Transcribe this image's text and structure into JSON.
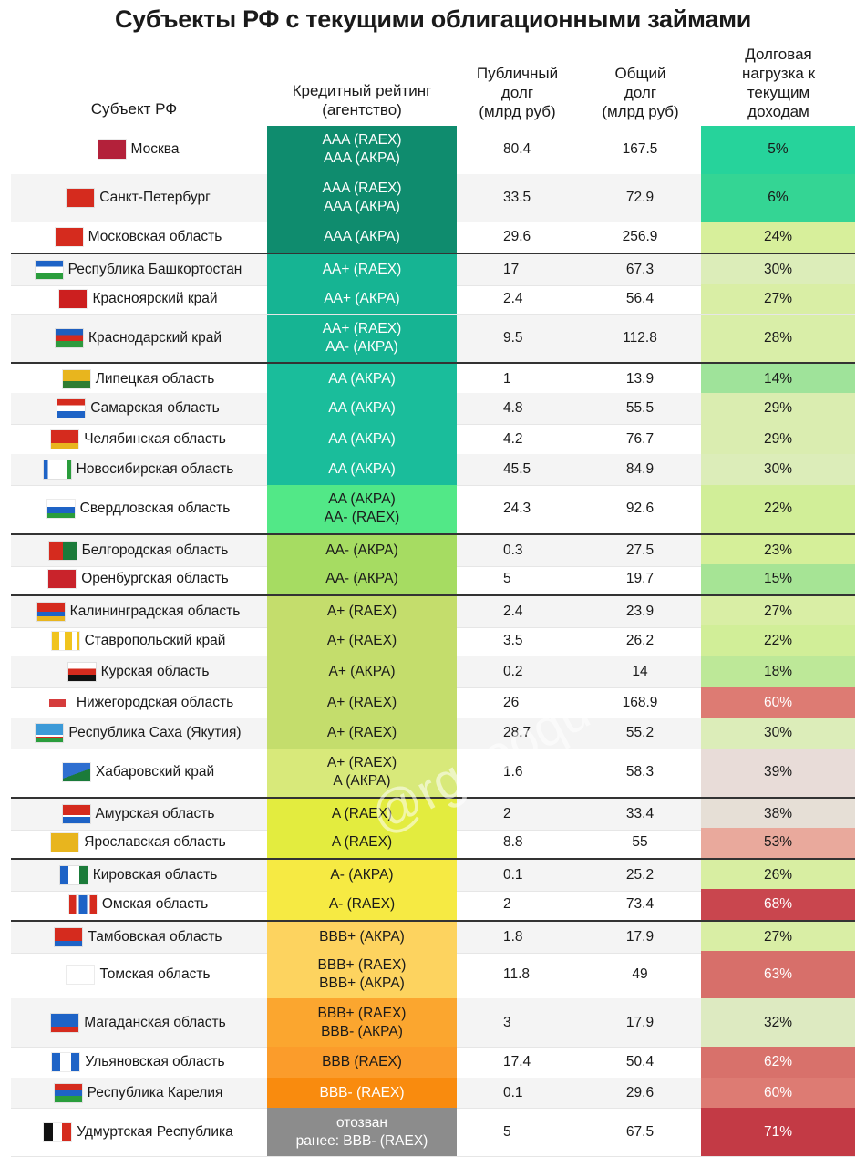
{
  "title": "Субъекты РФ с текущими облигационными займами",
  "watermark": "@rgoooque",
  "headers": {
    "region": "Субъект РФ",
    "rating": "Кредитный рейтинг\n(агентство)",
    "public_debt": "Публичный\nдолг\n(млрд руб)",
    "total_debt": "Общий\nдолг\n(млрд руб)",
    "load": "Долговая\nнагрузка к\nтекущим\nдоходам"
  },
  "chart_data": {
    "type": "table",
    "columns": [
      "Субъект РФ",
      "Кредитный рейтинг (агентство)",
      "Публичный долг (млрд руб)",
      "Общий долг (млрд руб)",
      "Долговая нагрузка к текущим доходам"
    ],
    "rows": [
      {
        "region": "Москва",
        "rating": "AAA (RAEX)\nAAA (АКРА)",
        "public_debt": "80.4",
        "total_debt": "167.5",
        "load": "5%",
        "rating_color": "#0f8c6e",
        "load_color": "#26d39b",
        "load_text": "#1a1a1a",
        "flag": "moscow-flag-icon",
        "tall": true,
        "sep": false
      },
      {
        "region": "Санкт-Петербург",
        "rating": "AAA (RAEX)\nAAA (АКРА)",
        "public_debt": "33.5",
        "total_debt": "72.9",
        "load": "6%",
        "rating_color": "#0f8c6e",
        "load_color": "#34d594",
        "load_text": "#1a1a1a",
        "flag": "spb-flag-icon",
        "tall": true,
        "sep": false
      },
      {
        "region": "Московская область",
        "rating": "AAA (АКРА)",
        "public_debt": "29.6",
        "total_debt": "256.9",
        "load": "24%",
        "rating_color": "#0f8c6e",
        "load_color": "#d7ef9b",
        "load_text": "#1a1a1a",
        "flag": "moscow-oblast-flag-icon",
        "tall": false,
        "sep": false
      },
      {
        "region": "Республика Башкортостан",
        "rating": "AA+ (RAEX)",
        "public_debt": "17",
        "total_debt": "67.3",
        "load": "30%",
        "rating_color": "#16b493",
        "load_color": "#dcedb9",
        "load_text": "#1a1a1a",
        "flag": "bashkortostan-flag-icon",
        "tall": false,
        "sep": true
      },
      {
        "region": "Красноярский край",
        "rating": "AA+ (АКРА)",
        "public_debt": "2.4",
        "total_debt": "56.4",
        "load": "27%",
        "rating_color": "#16b493",
        "load_color": "#d9eea5",
        "load_text": "#1a1a1a",
        "flag": "krasnoyarsk-flag-icon",
        "tall": false,
        "sep": false
      },
      {
        "region": "Краснодарский край",
        "rating": "AA+ (RAEX)\nAA- (АКРА)",
        "public_debt": "9.5",
        "total_debt": "112.8",
        "load": "28%",
        "rating_color": "#16b493",
        "load_color": "#d9eea8",
        "load_text": "#1a1a1a",
        "flag": "krasnodar-flag-icon",
        "tall": true,
        "sep": false
      },
      {
        "region": "Липецкая область",
        "rating": "AA (АКРА)",
        "public_debt": "1",
        "total_debt": "13.9",
        "load": "14%",
        "rating_color": "#1abd9b",
        "load_color": "#9fe39a",
        "load_text": "#1a1a1a",
        "flag": "lipetsk-flag-icon",
        "tall": false,
        "sep": true
      },
      {
        "region": "Самарская область",
        "rating": "AA (АКРА)",
        "public_debt": "4.8",
        "total_debt": "55.5",
        "load": "29%",
        "rating_color": "#1abd9b",
        "load_color": "#daedb0",
        "load_text": "#1a1a1a",
        "flag": "samara-flag-icon",
        "tall": false,
        "sep": false
      },
      {
        "region": "Челябинская область",
        "rating": "AA (АКРА)",
        "public_debt": "4.2",
        "total_debt": "76.7",
        "load": "29%",
        "rating_color": "#1abd9b",
        "load_color": "#daedb0",
        "load_text": "#1a1a1a",
        "flag": "chelyabinsk-flag-icon",
        "tall": false,
        "sep": false
      },
      {
        "region": "Новосибирская область",
        "rating": "AA (АКРА)",
        "public_debt": "45.5",
        "total_debt": "84.9",
        "load": "30%",
        "rating_color": "#1abd9b",
        "load_color": "#dcedb9",
        "load_text": "#1a1a1a",
        "flag": "novosibirsk-flag-icon",
        "tall": false,
        "sep": false
      },
      {
        "region": "Свердловская область",
        "rating": "AA (АКРА)\nAA- (RAEX)",
        "public_debt": "24.3",
        "total_debt": "92.6",
        "load": "22%",
        "rating_color": "#52e887",
        "load_color": "#d1ee98",
        "load_text": "#1a1a1a",
        "flag": "sverdlovsk-flag-icon",
        "tall": true,
        "sep": false
      },
      {
        "region": "Белгородская область",
        "rating": "AA- (АКРА)",
        "public_debt": "0.3",
        "total_debt": "27.5",
        "load": "23%",
        "rating_color": "#a6dc62",
        "load_color": "#d5ef99",
        "load_text": "#1a1a1a",
        "flag": "belgorod-flag-icon",
        "tall": false,
        "sep": true
      },
      {
        "region": "Оренбургская область",
        "rating": "AA- (АКРА)",
        "public_debt": "5",
        "total_debt": "19.7",
        "load": "15%",
        "rating_color": "#a6dc62",
        "load_color": "#a6e495",
        "load_text": "#1a1a1a",
        "flag": "orenburg-flag-icon",
        "tall": false,
        "sep": false
      },
      {
        "region": "Калининградская область",
        "rating": "A+ (RAEX)",
        "public_debt": "2.4",
        "total_debt": "23.9",
        "load": "27%",
        "rating_color": "#c4dd6c",
        "load_color": "#d9eea5",
        "load_text": "#1a1a1a",
        "flag": "kaliningrad-flag-icon",
        "tall": false,
        "sep": true
      },
      {
        "region": "Ставропольский край",
        "rating": "A+ (RAEX)",
        "public_debt": "3.5",
        "total_debt": "26.2",
        "load": "22%",
        "rating_color": "#c4dd6c",
        "load_color": "#d1ee98",
        "load_text": "#1a1a1a",
        "flag": "stavropol-flag-icon",
        "tall": false,
        "sep": false
      },
      {
        "region": "Курская область",
        "rating": "A+ (АКРА)",
        "public_debt": "0.2",
        "total_debt": "14",
        "load": "18%",
        "rating_color": "#c4dd6c",
        "load_color": "#bde898",
        "load_text": "#1a1a1a",
        "flag": "kursk-flag-icon",
        "tall": false,
        "sep": false
      },
      {
        "region": "Нижегородская область",
        "rating": "A+ (RAEX)",
        "public_debt": "26",
        "total_debt": "168.9",
        "load": "60%",
        "rating_color": "#c4dd6c",
        "load_color": "#dd7b73",
        "load_text": "#ffffff",
        "flag": "nizhny-novgorod-flag-icon",
        "tall": false,
        "sep": false
      },
      {
        "region": "Республика Саха (Якутия)",
        "rating": "A+ (RAEX)",
        "public_debt": "28.7",
        "total_debt": "55.2",
        "load": "30%",
        "rating_color": "#c4dd6c",
        "load_color": "#dcedb9",
        "load_text": "#1a1a1a",
        "flag": "yakutia-flag-icon",
        "tall": false,
        "sep": false
      },
      {
        "region": "Хабаровский край",
        "rating": "A+ (RAEX)\nA (АКРА)",
        "public_debt": "1.6",
        "total_debt": "58.3",
        "load": "39%",
        "rating_color": "#d8e97a",
        "load_color": "#e8dcd8",
        "load_text": "#1a1a1a",
        "flag": "khabarovsk-flag-icon",
        "tall": true,
        "sep": false
      },
      {
        "region": "Амурская область",
        "rating": "A (RAEX)",
        "public_debt": "2",
        "total_debt": "33.4",
        "load": "38%",
        "rating_color": "#e3ec3f",
        "load_color": "#e6dfd6",
        "load_text": "#1a1a1a",
        "flag": "amur-flag-icon",
        "tall": false,
        "sep": true
      },
      {
        "region": "Ярославская область",
        "rating": "A (RAEX)",
        "public_debt": "8.8",
        "total_debt": "55",
        "load": "53%",
        "rating_color": "#e3ec3f",
        "load_color": "#e9a99c",
        "load_text": "#1a1a1a",
        "flag": "yaroslavl-flag-icon",
        "tall": false,
        "sep": false
      },
      {
        "region": "Кировская область",
        "rating": "A- (АКРА)",
        "public_debt": "0.1",
        "total_debt": "25.2",
        "load": "26%",
        "rating_color": "#f6ea43",
        "load_color": "#d8eea2",
        "load_text": "#1a1a1a",
        "flag": "kirov-flag-icon",
        "tall": false,
        "sep": true
      },
      {
        "region": "Омская область",
        "rating": "A- (RAEX)",
        "public_debt": "2",
        "total_debt": "73.4",
        "load": "68%",
        "rating_color": "#f6ea43",
        "load_color": "#c9464e",
        "load_text": "#ffffff",
        "flag": "omsk-flag-icon",
        "tall": false,
        "sep": false
      },
      {
        "region": "Тамбовская область",
        "rating": "BBB+ (АКРА)",
        "public_debt": "1.8",
        "total_debt": "17.9",
        "load": "27%",
        "rating_color": "#fdd35f",
        "load_color": "#d9eea5",
        "load_text": "#1a1a1a",
        "flag": "tambov-flag-icon",
        "tall": false,
        "sep": true
      },
      {
        "region": "Томская область",
        "rating": "BBB+ (RAEX)\nBBB+ (АКРА)",
        "public_debt": "11.8",
        "total_debt": "49",
        "load": "63%",
        "rating_color": "#fdd35f",
        "load_color": "#d76f6a",
        "load_text": "#ffffff",
        "flag": "tomsk-flag-icon",
        "tall": true,
        "sep": false
      },
      {
        "region": "Магаданская область",
        "rating": "BBB+ (RAEX)\nBBB- (АКРА)",
        "public_debt": "3",
        "total_debt": "17.9",
        "load": "32%",
        "rating_color": "#fba62f",
        "load_color": "#ddeac1",
        "load_text": "#1a1a1a",
        "flag": "magadan-flag-icon",
        "tall": true,
        "sep": false
      },
      {
        "region": "Ульяновская область",
        "rating": "BBB (RAEX)",
        "public_debt": "17.4",
        "total_debt": "50.4",
        "load": "62%",
        "rating_color": "#fb9c2b",
        "load_color": "#d8716b",
        "load_text": "#ffffff",
        "flag": "ulyanovsk-flag-icon",
        "tall": false,
        "sep": false
      },
      {
        "region": "Республика Карелия",
        "rating": "BBB- (RAEX)",
        "public_debt": "0.1",
        "total_debt": "29.6",
        "load": "60%",
        "rating_color": "#f98b0e",
        "load_color": "#dd7b73",
        "load_text": "#ffffff",
        "flag": "karelia-flag-icon",
        "tall": false,
        "sep": false
      },
      {
        "region": "Удмуртская Республика",
        "rating": "отозван\nранее: BBB- (RAEX)",
        "public_debt": "5",
        "total_debt": "67.5",
        "load": "71%",
        "rating_color": "#8c8c8c",
        "load_color": "#c33a45",
        "load_text": "#ffffff",
        "flag": "udmurtia-flag-icon",
        "tall": true,
        "sep": false
      }
    ]
  }
}
